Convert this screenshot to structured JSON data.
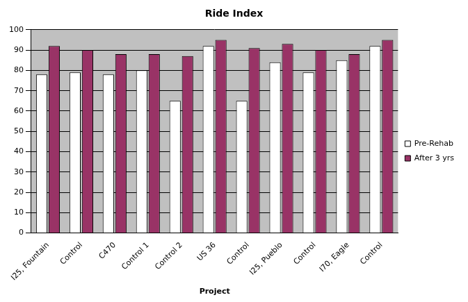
{
  "chart_data": {
    "type": "bar",
    "title": "Ride Index",
    "x_label": "Project",
    "categories": [
      "I25, Fountain",
      "Control",
      "C470",
      "Control 1",
      "Control 2",
      "US 36",
      "Control",
      "I25, Pueblo",
      "Control",
      "I70, Eagle",
      "Control"
    ],
    "series": [
      {
        "name": "Pre-Rehab",
        "color": "#ffffff",
        "values": [
          78,
          79,
          78,
          80,
          65,
          92,
          65,
          84,
          79,
          85,
          92
        ]
      },
      {
        "name": "After 3 yrs",
        "color": "#993366",
        "values": [
          92,
          90,
          88,
          88,
          87,
          95,
          91,
          93,
          90,
          88,
          95
        ]
      }
    ],
    "ylim": [
      0,
      100
    ],
    "yticks": [
      0,
      10,
      20,
      30,
      40,
      50,
      60,
      70,
      80,
      90,
      100
    ],
    "grid": true,
    "legend": "right"
  }
}
